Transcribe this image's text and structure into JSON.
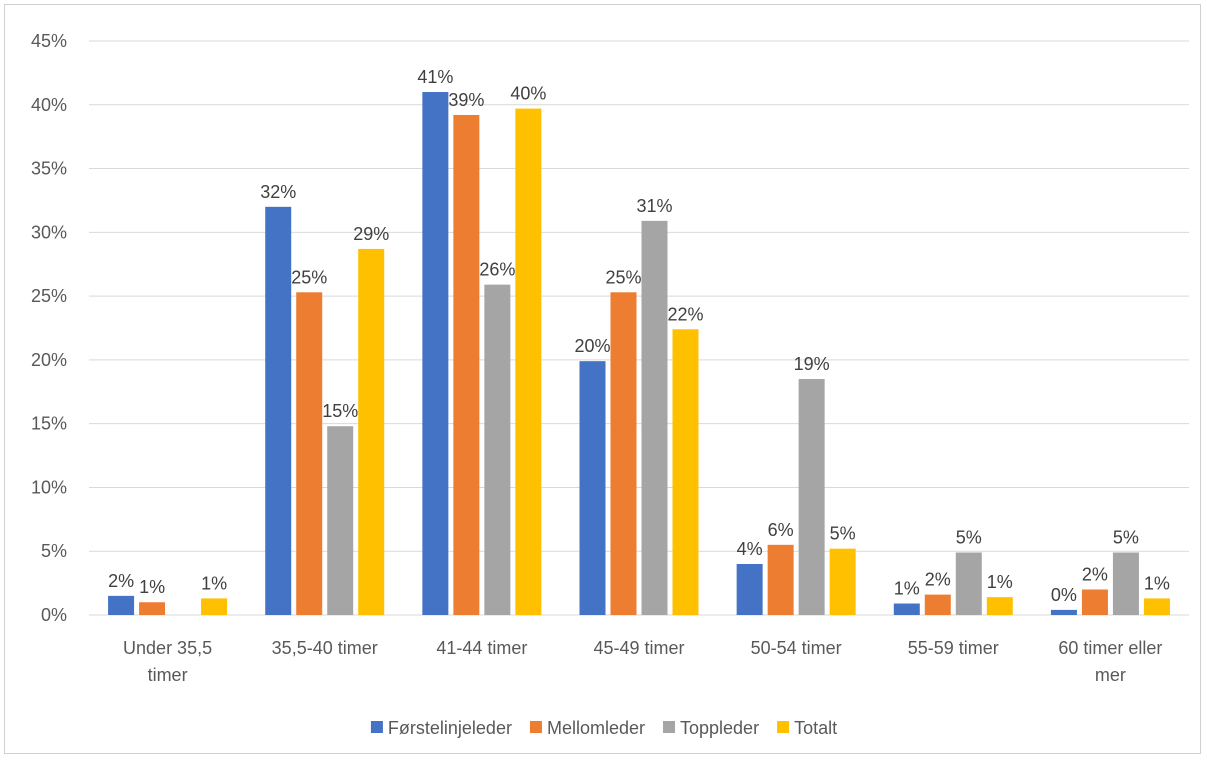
{
  "chart_data": {
    "type": "bar",
    "categories": [
      [
        "Under 35,5",
        "timer"
      ],
      [
        "35,5-40 timer"
      ],
      [
        "41-44 timer"
      ],
      [
        "45-49 timer"
      ],
      [
        "50-54 timer"
      ],
      [
        "55-59 timer"
      ],
      [
        "60 timer eller",
        "mer"
      ]
    ],
    "series": [
      {
        "name": "Førstelinjeleder",
        "color": "#4472C4",
        "values": [
          0.015,
          0.32,
          0.41,
          0.199,
          0.04,
          0.009,
          0.004
        ],
        "labels": [
          "2%",
          "32%",
          "41%",
          "20%",
          "4%",
          "1%",
          "0%"
        ]
      },
      {
        "name": "Mellomleder",
        "color": "#ED7D31",
        "values": [
          0.01,
          0.253,
          0.392,
          0.253,
          0.055,
          0.016,
          0.02
        ],
        "labels": [
          "1%",
          "25%",
          "39%",
          "25%",
          "6%",
          "2%",
          "2%"
        ]
      },
      {
        "name": "Toppleder",
        "color": "#A5A5A5",
        "values": [
          0.0,
          0.148,
          0.259,
          0.309,
          0.185,
          0.049,
          0.049
        ],
        "labels": [
          "",
          "15%",
          "26%",
          "31%",
          "19%",
          "5%",
          "5%"
        ]
      },
      {
        "name": "Totalt",
        "color": "#FFC000",
        "values": [
          0.013,
          0.287,
          0.397,
          0.224,
          0.052,
          0.014,
          0.013
        ],
        "labels": [
          "1%",
          "29%",
          "40%",
          "22%",
          "5%",
          "1%",
          "1%"
        ]
      }
    ],
    "ylim": [
      0,
      0.45
    ],
    "yticks": [
      0,
      0.05,
      0.1,
      0.15,
      0.2,
      0.25,
      0.3,
      0.35,
      0.4,
      0.45
    ],
    "ytick_labels": [
      "0%",
      "5%",
      "10%",
      "15%",
      "20%",
      "25%",
      "30%",
      "35%",
      "40%",
      "45%"
    ],
    "grid": true,
    "legend_position": "bottom",
    "gridline_color": "#D9D9D9"
  }
}
